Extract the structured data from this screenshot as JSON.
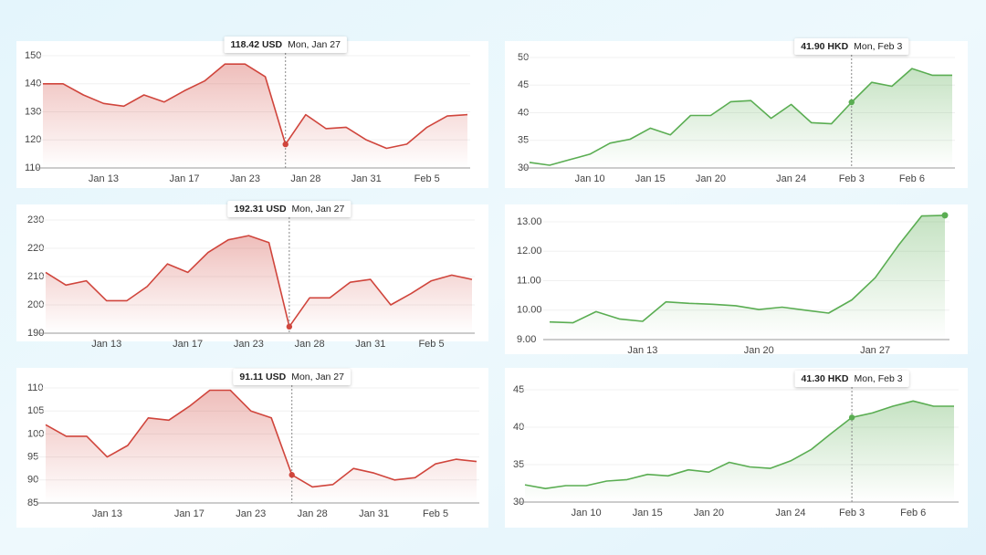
{
  "chart_data": [
    {
      "type": "line",
      "color": "#d0453c",
      "grid": true,
      "categories": [
        null,
        null,
        null,
        "Jan 13",
        null,
        null,
        null,
        "Jan 17",
        null,
        null,
        "Jan 23",
        null,
        null,
        "Jan 28",
        null,
        null,
        "Jan 31",
        null,
        null,
        "Feb 5",
        null,
        null
      ],
      "values": [
        140,
        140,
        136,
        133,
        132,
        136,
        133.5,
        137.5,
        141,
        147,
        147,
        142.5,
        118.42,
        129,
        124,
        124.5,
        120,
        117,
        118.5,
        124.5,
        128.5,
        129
      ],
      "ylim": [
        110,
        150
      ],
      "yticks": [
        110,
        120,
        130,
        140,
        150
      ],
      "tooltip": {
        "value": 118.42,
        "value_label": "118.42 USD",
        "date": "Mon, Jan 27"
      }
    },
    {
      "type": "line",
      "color": "#d0453c",
      "grid": true,
      "categories": [
        null,
        null,
        null,
        "Jan 13",
        null,
        null,
        null,
        "Jan 17",
        null,
        null,
        "Jan 23",
        null,
        null,
        "Jan 28",
        null,
        null,
        "Jan 31",
        null,
        null,
        "Feb 5",
        null,
        null
      ],
      "values": [
        211.5,
        207,
        208.5,
        201.5,
        201.5,
        206.5,
        214.5,
        211.5,
        218.5,
        223,
        224.5,
        222,
        192.31,
        202.5,
        202.5,
        208,
        209,
        200,
        204,
        208.5,
        210.5,
        209
      ],
      "ylim": [
        190,
        230
      ],
      "yticks": [
        190,
        200,
        210,
        220,
        230
      ],
      "tooltip": {
        "value": 192.31,
        "value_label": "192.31 USD",
        "date": "Mon, Jan 27"
      }
    },
    {
      "type": "line",
      "color": "#d0453c",
      "grid": true,
      "categories": [
        null,
        null,
        null,
        "Jan 13",
        null,
        null,
        null,
        "Jan 17",
        null,
        null,
        "Jan 23",
        null,
        null,
        "Jan 28",
        null,
        null,
        "Jan 31",
        null,
        null,
        "Feb 5",
        null,
        null
      ],
      "values": [
        102,
        99.5,
        99.5,
        95,
        97.5,
        103.5,
        103,
        106,
        109.5,
        109.5,
        105,
        103.5,
        91.11,
        88.5,
        89,
        92.5,
        91.5,
        90,
        90.5,
        93.5,
        94.5,
        94
      ],
      "ylim": [
        85,
        110
      ],
      "yticks": [
        85,
        90,
        95,
        100,
        105,
        110
      ],
      "tooltip": {
        "value": 91.11,
        "value_label": "91.11 USD",
        "date": "Mon, Jan 27"
      }
    },
    {
      "type": "line",
      "color": "#5aad52",
      "grid": true,
      "categories": [
        null,
        null,
        null,
        "Jan 10",
        null,
        null,
        "Jan 15",
        null,
        null,
        "Jan 20",
        null,
        null,
        null,
        "Jan 24",
        null,
        null,
        "Feb 3",
        null,
        null,
        "Feb 6",
        null,
        null
      ],
      "values": [
        31,
        30.5,
        31.5,
        32.5,
        34.5,
        35.2,
        37.2,
        36,
        39.5,
        39.5,
        42,
        42.2,
        39,
        41.5,
        38.2,
        38,
        41.9,
        45.5,
        44.8,
        48,
        46.8,
        46.8
      ],
      "ylim": [
        30,
        50
      ],
      "yticks": [
        30,
        35,
        40,
        45,
        50
      ],
      "tooltip": {
        "value": 41.9,
        "value_label": "41.90 HKD",
        "date": "Mon, Feb 3"
      }
    },
    {
      "type": "line",
      "color": "#5aad52",
      "grid": true,
      "end_dot": true,
      "categories": [
        null,
        null,
        null,
        null,
        "Jan 13",
        null,
        null,
        null,
        null,
        "Jan 20",
        null,
        null,
        null,
        null,
        "Jan 27",
        null,
        null,
        null
      ],
      "values": [
        9.6,
        9.57,
        9.95,
        9.7,
        9.62,
        10.28,
        10.23,
        10.2,
        10.15,
        10.02,
        10.1,
        10,
        9.9,
        10.35,
        11.1,
        12.2,
        13.2,
        13.22
      ],
      "ylim": [
        9,
        13
      ],
      "yticks": [
        {
          "value": 9,
          "label": "9.00"
        },
        {
          "value": 10,
          "label": "10.00"
        },
        {
          "value": 11,
          "label": "11.00"
        },
        {
          "value": 12,
          "label": "12.00"
        },
        {
          "value": 13,
          "label": "13.00"
        }
      ]
    },
    {
      "type": "line",
      "color": "#5aad52",
      "grid": true,
      "categories": [
        null,
        null,
        null,
        "Jan 10",
        null,
        null,
        "Jan 15",
        null,
        null,
        "Jan 20",
        null,
        null,
        null,
        "Jan 24",
        null,
        null,
        "Feb 3",
        null,
        null,
        "Feb 6",
        null,
        null
      ],
      "values": [
        32.3,
        31.8,
        32.2,
        32.2,
        32.8,
        33,
        33.7,
        33.5,
        34.3,
        34,
        35.3,
        34.7,
        34.5,
        35.5,
        37,
        39.2,
        41.3,
        41.9,
        42.8,
        43.5,
        42.8,
        42.8
      ],
      "ylim": [
        30,
        45
      ],
      "yticks": [
        30,
        35,
        40,
        45
      ],
      "tooltip": {
        "value": 41.3,
        "value_label": "41.30 HKD",
        "date": "Mon, Feb 3"
      }
    }
  ]
}
